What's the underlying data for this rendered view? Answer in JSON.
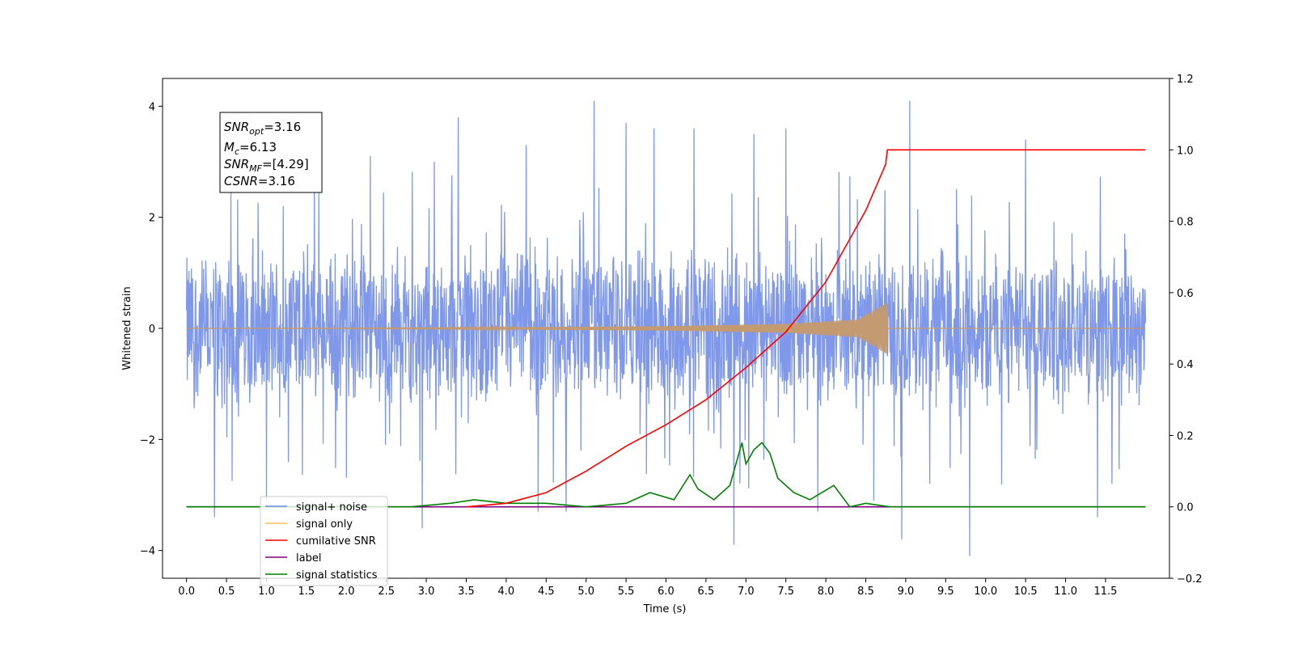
{
  "chart_data": {
    "type": "line",
    "xlabel": "Time (s)",
    "ylabel": "Whitened strain",
    "xlim": [
      -0.3,
      12.3
    ],
    "ylim": [
      -4.5,
      4.5
    ],
    "y2lim": [
      -0.2,
      1.2
    ],
    "x_ticks": [
      "0.0",
      "0.5",
      "1.0",
      "1.5",
      "2.0",
      "2.5",
      "3.0",
      "3.5",
      "4.0",
      "4.5",
      "5.0",
      "5.5",
      "6.0",
      "6.5",
      "7.0",
      "7.5",
      "8.0",
      "8.5",
      "9.0",
      "9.5",
      "10.0",
      "10.5",
      "11.0",
      "11.5"
    ],
    "y_ticks": [
      "4",
      "2",
      "0",
      "−2",
      "−4"
    ],
    "y2_ticks": [
      "1.2",
      "1.0",
      "0.8",
      "0.6",
      "0.4",
      "0.2",
      "0.0",
      "−0.2"
    ],
    "annotation": {
      "snr_opt": {
        "base": "SNR",
        "sub": "opt",
        "rest": "=3.16"
      },
      "mc": {
        "base": "M",
        "sub": "c",
        "rest": "=6.13"
      },
      "snr_mf": {
        "base": "SNR",
        "sub": "MF",
        "rest": "=[4.29]"
      },
      "csnr": {
        "base": "CSNR",
        "rest": "=3.16"
      }
    },
    "legend": {
      "placement": "lower-left",
      "entries": [
        {
          "label": "signal+ noise",
          "color": "#6f8ce8"
        },
        {
          "label": "signal only",
          "color": "#ffbf5f"
        },
        {
          "label": "cumilative SNR",
          "color": "#ff0000"
        },
        {
          "label": "label",
          "color": "#800080"
        },
        {
          "label": "signal statistics",
          "color": "#008000"
        }
      ]
    },
    "series": [
      {
        "name": "signal+ noise",
        "color": "#7892e8",
        "axis": "left",
        "x_range": [
          0.0,
          12.0
        ],
        "noise_envelope": 1.5,
        "peaks": [
          [
            0.35,
            -3.4
          ],
          [
            1.0,
            -3.1
          ],
          [
            1.6,
            2.9
          ],
          [
            2.3,
            3.1
          ],
          [
            2.95,
            -3.6
          ],
          [
            3.1,
            3.0
          ],
          [
            3.4,
            3.8
          ],
          [
            4.25,
            3.3
          ],
          [
            4.4,
            -3.3
          ],
          [
            4.75,
            -3.3
          ],
          [
            5.1,
            4.1
          ],
          [
            5.5,
            3.7
          ],
          [
            5.85,
            3.6
          ],
          [
            6.35,
            3.6
          ],
          [
            6.85,
            -3.9
          ],
          [
            7.1,
            3.5
          ],
          [
            7.5,
            3.6
          ],
          [
            7.9,
            -3.3
          ],
          [
            8.6,
            -3.1
          ],
          [
            8.95,
            -3.8
          ],
          [
            9.05,
            4.1
          ],
          [
            9.3,
            -2.8
          ],
          [
            9.8,
            -4.1
          ],
          [
            10.5,
            3.4
          ],
          [
            11.4,
            -3.4
          ]
        ]
      },
      {
        "name": "signal only",
        "color": "#c49a70",
        "axis": "left",
        "amplitude": [
          [
            0.0,
            0.0
          ],
          [
            3.0,
            0.01
          ],
          [
            6.0,
            0.04
          ],
          [
            7.5,
            0.08
          ],
          [
            8.4,
            0.16
          ],
          [
            8.75,
            0.45
          ]
        ],
        "end_x": 8.77
      },
      {
        "name": "cumilative SNR",
        "color": "#ff0000",
        "axis": "right",
        "x": [
          3.5,
          4.0,
          4.5,
          5.0,
          5.5,
          6.0,
          6.5,
          7.0,
          7.5,
          8.0,
          8.5,
          8.75,
          8.77,
          12.0
        ],
        "y": [
          0.0,
          0.01,
          0.04,
          0.1,
          0.17,
          0.23,
          0.3,
          0.39,
          0.49,
          0.63,
          0.83,
          0.96,
          1.0,
          1.0
        ]
      },
      {
        "name": "label",
        "color": "#800080",
        "axis": "right",
        "x": [
          0.0,
          12.0
        ],
        "y": [
          0.0,
          0.0
        ]
      },
      {
        "name": "signal statistics",
        "color": "#008000",
        "axis": "right",
        "x": [
          0.0,
          2.8,
          3.3,
          3.6,
          4.0,
          4.5,
          5.0,
          5.5,
          5.8,
          6.1,
          6.3,
          6.4,
          6.6,
          6.8,
          6.95,
          7.0,
          7.1,
          7.2,
          7.3,
          7.4,
          7.6,
          7.8,
          8.1,
          8.3,
          8.5,
          8.8,
          9.0,
          9.5,
          12.0
        ],
        "y": [
          0.0,
          0.0,
          0.01,
          0.02,
          0.01,
          0.01,
          0.0,
          0.01,
          0.04,
          0.02,
          0.09,
          0.05,
          0.02,
          0.06,
          0.18,
          0.12,
          0.16,
          0.18,
          0.15,
          0.08,
          0.04,
          0.02,
          0.06,
          0.0,
          0.01,
          0.0,
          0.0,
          0.0,
          0.0
        ]
      }
    ]
  }
}
